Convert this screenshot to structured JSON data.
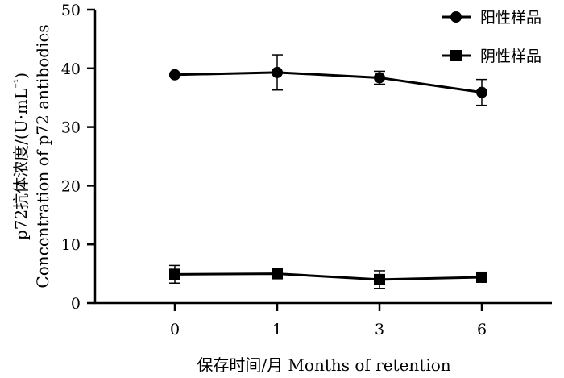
{
  "chart_data": {
    "type": "line",
    "xlabel": "保存时间/月 Months of retention",
    "ylabel": [
      "p72抗体浓度/(U·mL",
      "⁻¹",
      ")"
    ],
    "ylabel_en": "Concentration of p72 antibodies",
    "categories": [
      "0",
      "1",
      "3",
      "6"
    ],
    "ylim": [
      0,
      50
    ],
    "yticks": [
      0,
      10,
      20,
      30,
      40,
      50
    ],
    "grid": false,
    "legend_position": "top-right",
    "series": [
      {
        "name": "阳性样品",
        "marker": "circle",
        "color": "#000000",
        "values": [
          38.9,
          39.3,
          38.4,
          35.9
        ],
        "error": [
          0.3,
          3.0,
          1.1,
          2.2
        ]
      },
      {
        "name": "阴性样品",
        "marker": "square",
        "color": "#000000",
        "values": [
          4.9,
          5.0,
          4.0,
          4.4
        ],
        "error": [
          1.5,
          0.5,
          1.5,
          0.6
        ]
      }
    ]
  }
}
